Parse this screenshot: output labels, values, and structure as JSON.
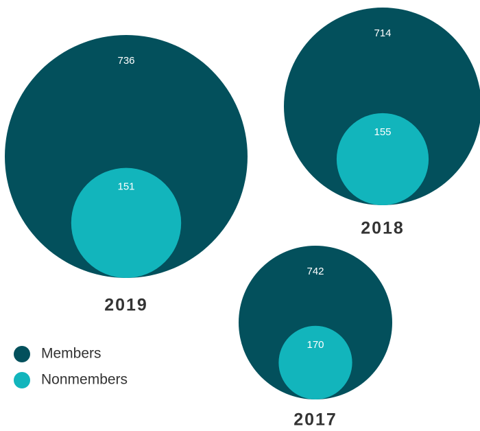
{
  "chart_data": {
    "type": "nested-bubble",
    "categories": [
      "2019",
      "2018",
      "2017"
    ],
    "series": [
      {
        "name": "Members",
        "color": "#03505c",
        "values": [
          736,
          714,
          742
        ]
      },
      {
        "name": "Nonmembers",
        "color": "#12b5bc",
        "values": [
          151,
          155,
          170
        ]
      }
    ]
  }
}
